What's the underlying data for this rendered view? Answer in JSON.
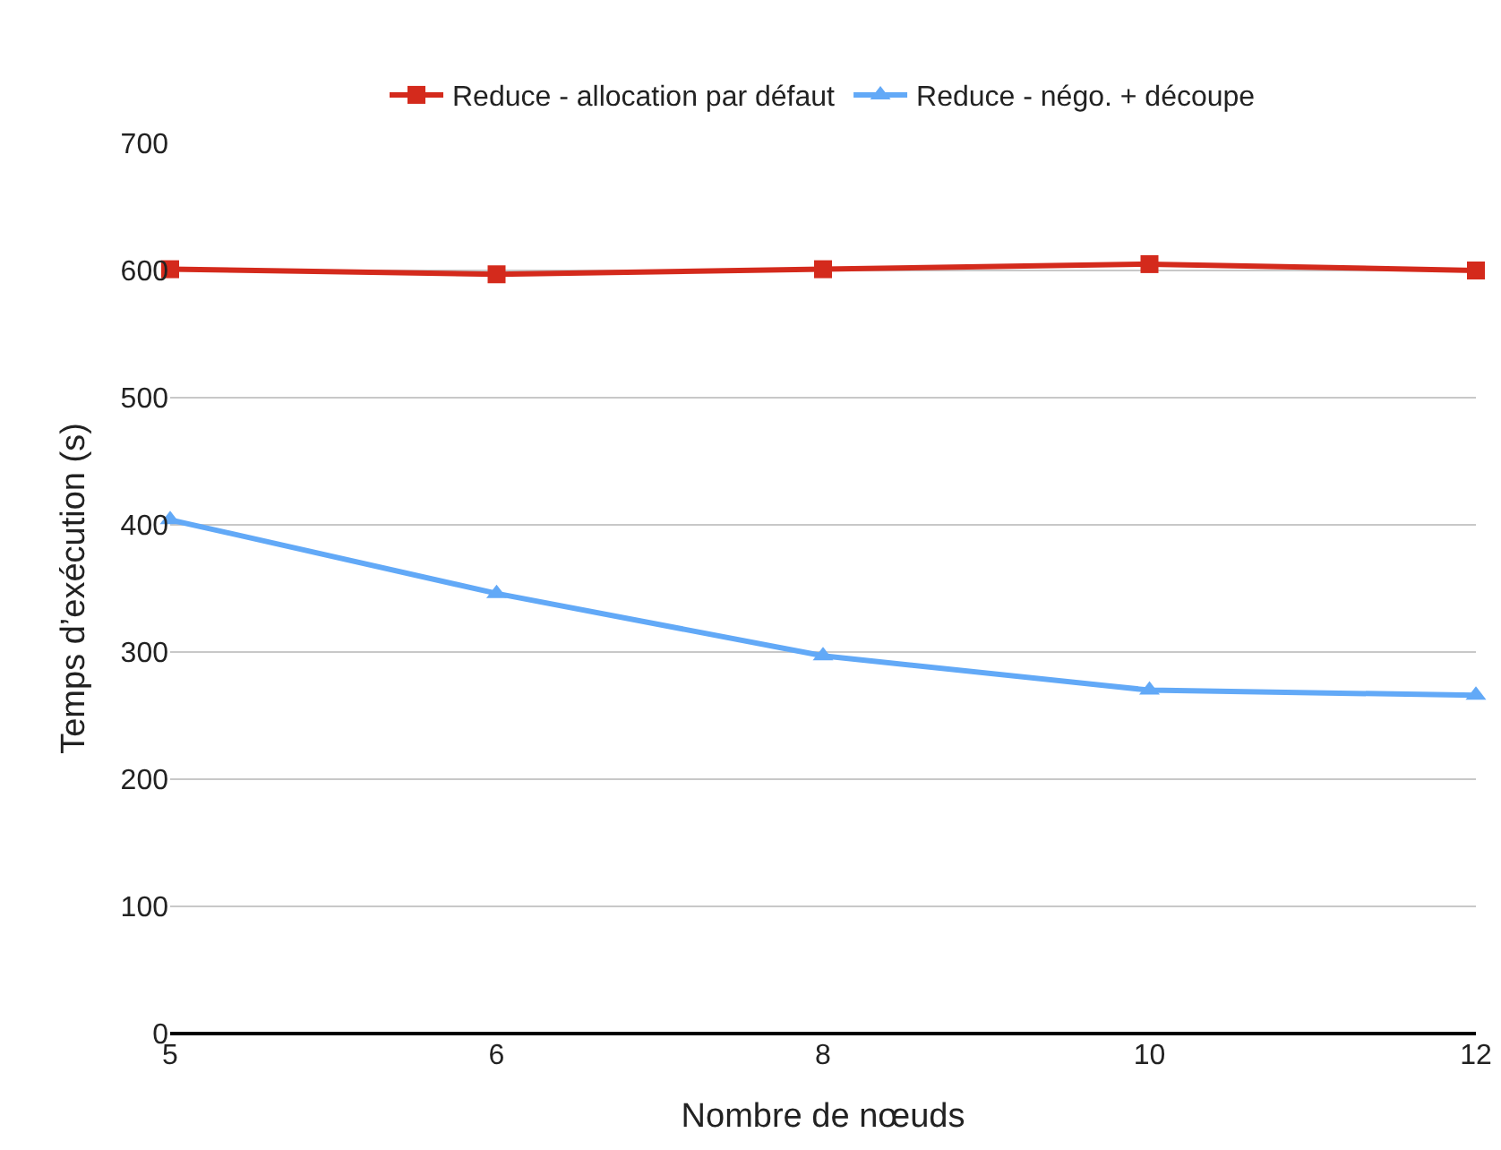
{
  "chart_data": {
    "type": "line",
    "xlabel": "Nombre de nœuds",
    "ylabel": "Temps d’exécution (s)",
    "categories": [
      "5",
      "6",
      "8",
      "10",
      "12"
    ],
    "series": [
      {
        "name": "Reduce - allocation par défaut",
        "color": "#d42a1c",
        "marker": "square",
        "values": [
          601,
          597,
          601,
          605,
          600
        ]
      },
      {
        "name": "Reduce - négo. + découpe",
        "color": "#62a9f7",
        "marker": "triangle",
        "values": [
          404,
          346,
          297,
          270,
          266
        ]
      }
    ],
    "ylim": [
      0,
      700
    ],
    "yticks": [
      0,
      100,
      200,
      300,
      400,
      500,
      600,
      700
    ],
    "grid": "y",
    "legend": "top",
    "line_style": "solid"
  }
}
